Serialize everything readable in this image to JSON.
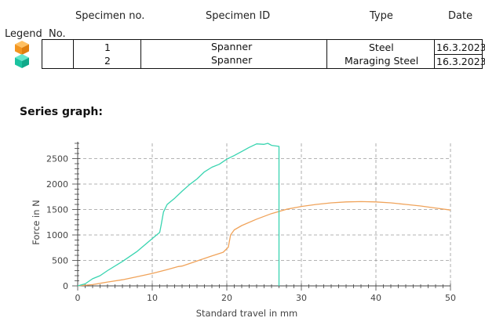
{
  "table": {
    "headers": {
      "specimen_no": "Specimen no.",
      "specimen_id": "Specimen ID",
      "type": "Type",
      "date": "Date",
      "legend": "Legend",
      "no": "No."
    },
    "rows": [
      {
        "no": "1",
        "id": "Spanner",
        "type": "Steel",
        "date": "16.3.2023",
        "color": "#F59A23"
      },
      {
        "no": "2",
        "id": "Spanner",
        "type": "Maraging Steel",
        "date": "16.3.2023",
        "color": "#1CC7A5"
      }
    ]
  },
  "section_title": "Series graph:",
  "chart_data": {
    "type": "line",
    "title": "",
    "xlabel": "Standard travel in mm",
    "ylabel": "Force in N",
    "xlim": [
      0,
      50
    ],
    "ylim": [
      0,
      2800
    ],
    "xticks": [
      0,
      10,
      20,
      30,
      40,
      50
    ],
    "yticks": [
      0,
      500,
      1000,
      1500,
      2000,
      2500
    ],
    "grid": true,
    "series": [
      {
        "name": "1",
        "color": "#F0A35A",
        "points": [
          [
            0,
            0
          ],
          [
            2,
            25
          ],
          [
            4,
            75
          ],
          [
            6,
            120
          ],
          [
            8,
            180
          ],
          [
            10,
            245
          ],
          [
            12,
            320
          ],
          [
            13.5,
            380
          ],
          [
            14,
            390
          ],
          [
            16,
            490
          ],
          [
            18,
            590
          ],
          [
            19.5,
            660
          ],
          [
            20.2,
            760
          ],
          [
            20.5,
            1000
          ],
          [
            21,
            1100
          ],
          [
            22,
            1185
          ],
          [
            24,
            1310
          ],
          [
            26,
            1420
          ],
          [
            28,
            1505
          ],
          [
            30,
            1560
          ],
          [
            32,
            1600
          ],
          [
            34,
            1630
          ],
          [
            36,
            1650
          ],
          [
            38,
            1655
          ],
          [
            40,
            1650
          ],
          [
            42,
            1630
          ],
          [
            44,
            1600
          ],
          [
            46,
            1570
          ],
          [
            48,
            1530
          ],
          [
            50,
            1490
          ]
        ]
      },
      {
        "name": "2",
        "color": "#38D4B0",
        "points": [
          [
            0,
            0
          ],
          [
            1,
            40
          ],
          [
            2,
            140
          ],
          [
            3,
            200
          ],
          [
            4,
            300
          ],
          [
            6,
            480
          ],
          [
            8,
            680
          ],
          [
            10,
            930
          ],
          [
            11,
            1050
          ],
          [
            11.2,
            1200
          ],
          [
            11.5,
            1450
          ],
          [
            12,
            1600
          ],
          [
            13,
            1720
          ],
          [
            14,
            1860
          ],
          [
            15,
            1990
          ],
          [
            16,
            2100
          ],
          [
            17,
            2240
          ],
          [
            18,
            2330
          ],
          [
            19,
            2390
          ],
          [
            20,
            2490
          ],
          [
            21,
            2560
          ],
          [
            22,
            2640
          ],
          [
            23,
            2720
          ],
          [
            24,
            2790
          ],
          [
            25,
            2780
          ],
          [
            25.5,
            2800
          ],
          [
            26,
            2760
          ],
          [
            27,
            2740
          ],
          [
            27,
            0
          ]
        ]
      }
    ]
  }
}
